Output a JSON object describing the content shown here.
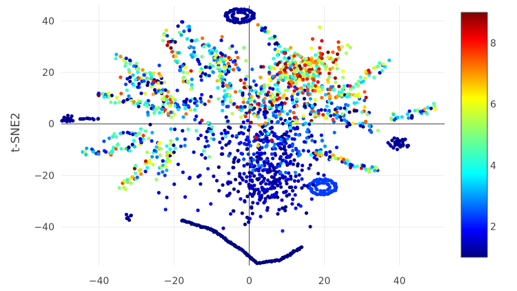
{
  "chart_data": {
    "type": "scatter",
    "title": "",
    "xlabel": "",
    "ylabel": "t-SNE2",
    "xlim": [
      -50,
      52
    ],
    "ylim": [
      -55,
      46
    ],
    "grid": true,
    "zero_lines": true,
    "colorscale": "jet",
    "color_range": [
      1,
      9
    ],
    "colorbar_ticks": [
      "2",
      "4",
      "6",
      "8"
    ],
    "colorbar_tick_values": [
      2,
      4,
      6,
      8
    ],
    "x_ticks": [
      "−40",
      "−20",
      "0",
      "20",
      "40"
    ],
    "x_tick_values": [
      -40,
      -20,
      0,
      20,
      40
    ],
    "y_ticks": [
      "−40",
      "−20",
      "0",
      "20",
      "40"
    ],
    "y_tick_values": [
      -40,
      -20,
      0,
      20,
      40
    ],
    "clusters": [
      {
        "kind": "ring",
        "cx": -2.5,
        "cy": 42,
        "rx": 4,
        "ry": 2.8,
        "n": 60,
        "value": 1.2
      },
      {
        "kind": "ring",
        "cx": 19.5,
        "cy": -24.5,
        "rx": 3.8,
        "ry": 3.2,
        "n": 60,
        "value": 2.3
      },
      {
        "kind": "blob",
        "cx": -48.5,
        "cy": 2,
        "sx": 1,
        "sy": 0.7,
        "n": 25,
        "vmin": 1.0,
        "vmax": 1.3
      },
      {
        "kind": "blob",
        "cx": 39.5,
        "cy": -7.8,
        "sx": 1.2,
        "sy": 1.2,
        "n": 35,
        "vmin": 1.0,
        "vmax": 1.4
      },
      {
        "kind": "blob",
        "cx": -32,
        "cy": -36,
        "sx": 0.4,
        "sy": 0.6,
        "n": 6,
        "vmin": 1.0,
        "vmax": 1.5
      },
      {
        "kind": "blob",
        "cx": 5,
        "cy": -22,
        "sx": 5,
        "sy": 7,
        "n": 240,
        "vmin": 1.0,
        "vmax": 1.8
      },
      {
        "kind": "blob",
        "cx": 8,
        "cy": -8,
        "sx": 6,
        "sy": 6,
        "n": 170,
        "vmin": 1.0,
        "vmax": 3.0
      },
      {
        "kind": "blob",
        "cx": -5,
        "cy": -12,
        "sx": 10,
        "sy": 10,
        "n": 80,
        "vmin": 1.0,
        "vmax": 2.2
      },
      {
        "kind": "blob",
        "cx": 5,
        "cy": 8,
        "sx": 7,
        "sy": 6,
        "n": 230,
        "vmin": 1.0,
        "vmax": 9.0
      },
      {
        "kind": "blob",
        "cx": 12,
        "cy": 20,
        "sx": 4,
        "sy": 4,
        "n": 160,
        "vmin": 3.0,
        "vmax": 9.0
      },
      {
        "kind": "blob",
        "cx": 20,
        "cy": 24,
        "sx": 3,
        "sy": 5,
        "n": 70,
        "vmin": 5.0,
        "vmax": 9.0
      },
      {
        "kind": "blob",
        "cx": -6,
        "cy": 22,
        "sx": 3,
        "sy": 4,
        "n": 60,
        "vmin": 1.0,
        "vmax": 8.0
      },
      {
        "kind": "blob",
        "cx": -20,
        "cy": 7,
        "sx": 4,
        "sy": 3,
        "n": 60,
        "vmin": 1.0,
        "vmax": 8.0
      },
      {
        "kind": "blob",
        "cx": -30,
        "cy": 16,
        "sx": 4,
        "sy": 3,
        "n": 50,
        "vmin": 1.0,
        "vmax": 8.0
      },
      {
        "kind": "blob",
        "cx": 25,
        "cy": 5,
        "sx": 4,
        "sy": 3,
        "n": 50,
        "vmin": 1.0,
        "vmax": 8.0
      },
      {
        "kind": "blob",
        "cx": -10,
        "cy": -3,
        "sx": 5,
        "sy": 4,
        "n": 40,
        "vmin": 1.0,
        "vmax": 5.0
      },
      {
        "kind": "arc",
        "points": [
          [
            -18,
            -37.5
          ],
          [
            -10,
            -41
          ],
          [
            -2,
            -49
          ],
          [
            2,
            -54
          ],
          [
            8,
            -53
          ],
          [
            14,
            -48
          ]
        ],
        "n": 130,
        "value": 1.0
      },
      {
        "kind": "arc",
        "points": [
          [
            -45,
            2
          ],
          [
            -42,
            2
          ],
          [
            -40,
            2
          ]
        ],
        "n": 10,
        "value": 1.2
      },
      {
        "kind": "arc",
        "points": [
          [
            -40,
            12
          ],
          [
            -34,
            9
          ],
          [
            -28,
            8
          ],
          [
            -24,
            4
          ]
        ],
        "n": 40,
        "value": 4
      },
      {
        "kind": "arc",
        "points": [
          [
            -44,
            -10
          ],
          [
            -38,
            -11
          ],
          [
            -32,
            -9
          ],
          [
            -28,
            -5
          ]
        ],
        "n": 40,
        "value": 4
      },
      {
        "kind": "arc",
        "points": [
          [
            -35,
            26
          ],
          [
            -30,
            22
          ],
          [
            -26,
            18
          ],
          [
            -22,
            10
          ]
        ],
        "n": 45,
        "value": 4
      },
      {
        "kind": "arc",
        "points": [
          [
            -23,
            36
          ],
          [
            -20,
            30
          ],
          [
            -18,
            22
          ],
          [
            -16,
            14
          ]
        ],
        "n": 45,
        "value": 5
      },
      {
        "kind": "arc",
        "points": [
          [
            -18,
            40
          ],
          [
            -16,
            34
          ],
          [
            -14,
            26
          ],
          [
            -12,
            18
          ]
        ],
        "n": 35,
        "value": 3
      },
      {
        "kind": "arc",
        "points": [
          [
            -12,
            32
          ],
          [
            -9,
            26
          ],
          [
            -7,
            18
          ],
          [
            -5,
            10
          ]
        ],
        "n": 45,
        "value": 4
      },
      {
        "kind": "arc",
        "points": [
          [
            -34,
            -25
          ],
          [
            -30,
            -20
          ],
          [
            -26,
            -14
          ],
          [
            -24,
            -8
          ]
        ],
        "n": 40,
        "value": 5
      },
      {
        "kind": "arc",
        "points": [
          [
            -24,
            -20
          ],
          [
            -22,
            -15
          ],
          [
            -20,
            -8
          ]
        ],
        "n": 25,
        "value": 4
      },
      {
        "kind": "arc",
        "points": [
          [
            -38,
            -5
          ],
          [
            -32,
            -4
          ],
          [
            -26,
            -3
          ]
        ],
        "n": 20,
        "value": 3
      },
      {
        "kind": "arc",
        "points": [
          [
            16,
            -11
          ],
          [
            20,
            -12
          ],
          [
            25,
            -14
          ],
          [
            30,
            -17
          ],
          [
            35,
            -18
          ]
        ],
        "n": 45,
        "value": 4
      },
      {
        "kind": "arc",
        "points": [
          [
            17,
            15
          ],
          [
            22,
            13
          ],
          [
            28,
            15
          ],
          [
            33,
            20
          ],
          [
            37,
            24
          ]
        ],
        "n": 45,
        "value": 5
      },
      {
        "kind": "arc",
        "points": [
          [
            15,
            8
          ],
          [
            20,
            5
          ],
          [
            26,
            2
          ],
          [
            31,
            -1
          ],
          [
            34,
            -3
          ]
        ],
        "n": 35,
        "value": 3
      },
      {
        "kind": "arc",
        "points": [
          [
            38,
            2
          ],
          [
            42,
            3
          ],
          [
            46,
            5
          ],
          [
            50,
            7
          ]
        ],
        "n": 30,
        "value": 4
      },
      {
        "kind": "arc",
        "points": [
          [
            22,
            10
          ],
          [
            26,
            12
          ],
          [
            30,
            11
          ]
        ],
        "n": 20,
        "value": 6
      },
      {
        "kind": "arc",
        "points": [
          [
            2,
            38
          ],
          [
            5,
            35
          ],
          [
            8,
            30
          ],
          [
            10,
            25
          ]
        ],
        "n": 30,
        "value": 3
      }
    ]
  }
}
